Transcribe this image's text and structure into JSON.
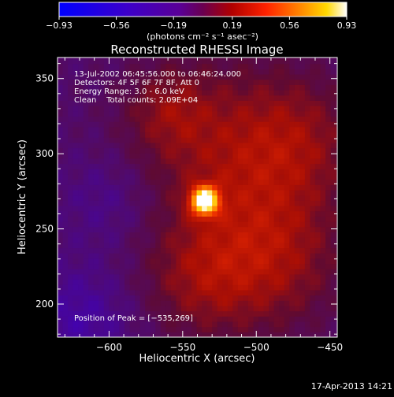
{
  "chart_data": {
    "type": "heatmap",
    "title": "Reconstructed RHESSI Image",
    "xlabel": "Heliocentric X (arcsec)",
    "ylabel": "Heliocentric Y (arcsec)",
    "xlim": [
      -635,
      -445
    ],
    "ylim": [
      178,
      364
    ],
    "xticks": [
      -600,
      -550,
      -500,
      -450
    ],
    "xtick_labels": [
      "−600",
      "−550",
      "−500",
      "−450"
    ],
    "yticks": [
      200,
      250,
      300,
      350
    ],
    "ytick_labels": [
      "200",
      "250",
      "300",
      "350"
    ],
    "colorbar": {
      "range": [
        -0.93,
        0.93
      ],
      "ticks": [
        -0.93,
        -0.56,
        -0.19,
        0.19,
        0.56,
        0.93
      ],
      "tick_labels": [
        "−0.93",
        "−0.56",
        "−0.19",
        "0.19",
        "0.56",
        "0.93"
      ],
      "unit_label": "(photons cm⁻² s⁻¹ asec⁻²)"
    },
    "annotations": [
      "13-Jul-2002 06:45:56.000 to 06:46:24.000",
      "Detectors: 4F 5F 6F 7F 8F, Att 0",
      "Energy Range: 3.0 - 6.0 keV",
      "Clean    Total counts: 2.09E+04"
    ],
    "peak_label": "Position of Peak = [−535,269]",
    "peak": [
      -535,
      269
    ],
    "peak_value": 0.93,
    "grid": false,
    "legend": "none"
  },
  "footer": {
    "timestamp": "17-Apr-2013 14:21"
  }
}
